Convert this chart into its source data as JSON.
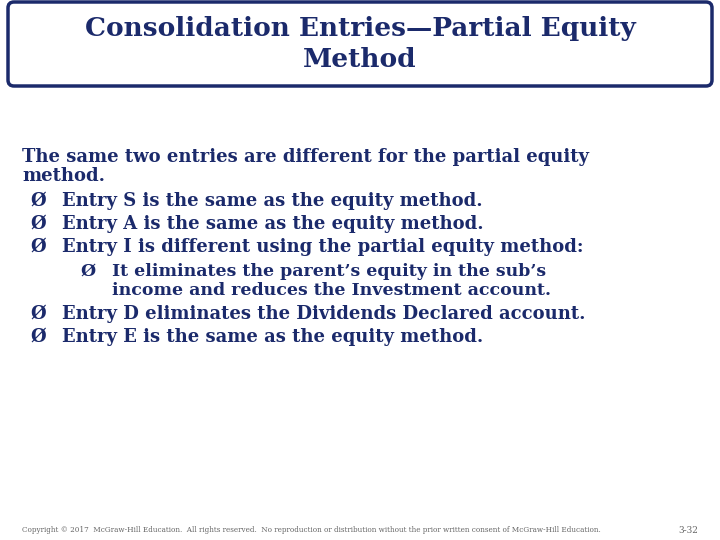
{
  "title_line1": "Consolidation Entries—Partial Equity",
  "title_line2": "Method",
  "title_color": "#1B2A6B",
  "title_bg": "#FFFFFF",
  "title_border_color": "#1B2A6B",
  "bg_color": "#FFFFFF",
  "text_color": "#1B2A6B",
  "body_items": [
    {
      "level": 0,
      "lines": [
        "The same two entries are different for the partial equity",
        "method."
      ]
    },
    {
      "level": 1,
      "lines": [
        "Entry S is the same as the equity method."
      ]
    },
    {
      "level": 1,
      "lines": [
        "Entry A is the same as the equity method."
      ]
    },
    {
      "level": 1,
      "lines": [
        "Entry I is different using the partial equity method:"
      ]
    },
    {
      "level": 2,
      "lines": [
        "It eliminates the parent’s equity in the sub’s",
        "income and reduces the Investment account."
      ]
    },
    {
      "level": 1,
      "lines": [
        "Entry D eliminates the Dividends Declared account."
      ]
    },
    {
      "level": 1,
      "lines": [
        "Entry E is the same as the equity method."
      ]
    }
  ],
  "footer_text": "Copyright © 2017  McGraw-Hill Education.  All rights reserved.  No reproduction or distribution without the prior written consent of McGraw-Hill Education.",
  "footer_page": "3-32",
  "footer_color": "#666666",
  "font_family": "serif",
  "title_fontsize": 19,
  "body_fontsize": 13,
  "footer_fontsize": 5.2
}
